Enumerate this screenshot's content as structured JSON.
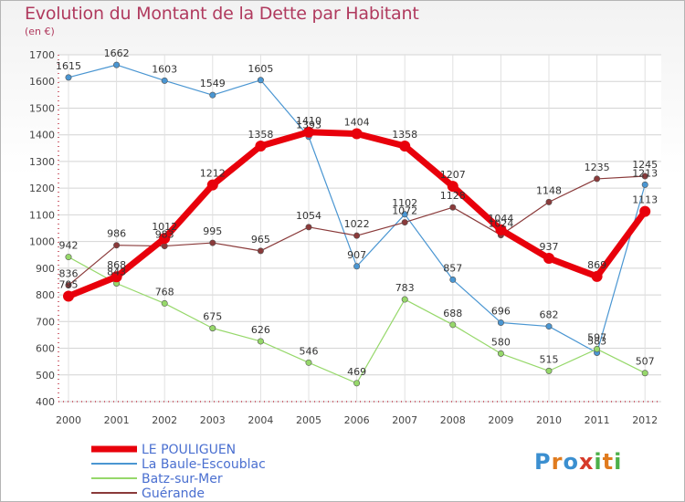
{
  "header": {
    "title": "Evolution du Montant de la Dette par Habitant",
    "subtitle": "(en €)"
  },
  "logo": {
    "letters": [
      "P",
      "r",
      "o",
      "x",
      "i",
      "t",
      "i"
    ],
    "colors": [
      "#3b8fd0",
      "#e07b1e",
      "#3b8fd0",
      "#d63a2a",
      "#4db04a",
      "#e07b1e",
      "#4db04a"
    ]
  },
  "chart_data": {
    "type": "line",
    "title": "Evolution du Montant de la Dette par Habitant",
    "subtitle": "(en €)",
    "xlabel": "",
    "ylabel": "",
    "x": [
      "2000",
      "2001",
      "2002",
      "2003",
      "2004",
      "2005",
      "2006",
      "2007",
      "2008",
      "2009",
      "2010",
      "2011",
      "2012"
    ],
    "ylim": [
      400,
      1700
    ],
    "yticks": [
      400,
      500,
      600,
      700,
      800,
      900,
      1000,
      1100,
      1200,
      1300,
      1400,
      1500,
      1600,
      1700
    ],
    "grid": true,
    "legend_position": "bottom-left",
    "series": [
      {
        "name": "LE POULIGUEN",
        "color": "#e8000b",
        "values": [
          795,
          868,
          1012,
          1212,
          1358,
          1410,
          1404,
          1358,
          1207,
          1044,
          937,
          869,
          1113
        ],
        "labels": [
          "795",
          "868",
          "1012",
          "1212",
          "1358",
          "1410",
          "1404",
          "1358",
          "1207",
          "1044",
          "937",
          "869",
          "1113"
        ]
      },
      {
        "name": "La Baule-Escoublac",
        "color": "#4a96d2",
        "values": [
          1615,
          1662,
          1603,
          1549,
          1605,
          1393,
          907,
          1102,
          857,
          696,
          682,
          583,
          1213
        ],
        "labels": [
          "1615",
          "1662",
          "1603",
          "1549",
          "1605",
          "1393",
          "907",
          "1102",
          "857",
          "696",
          "682",
          "583",
          "1213"
        ]
      },
      {
        "name": "Batz-sur-Mer",
        "color": "#96d86a",
        "values": [
          942,
          843,
          768,
          675,
          626,
          546,
          469,
          783,
          688,
          580,
          515,
          597,
          507
        ],
        "labels": [
          "942",
          "843",
          "768",
          "675",
          "626",
          "546",
          "469",
          "783",
          "688",
          "580",
          "515",
          "597",
          "507"
        ]
      },
      {
        "name": "Guérande",
        "color": "#8a3a3a",
        "values": [
          836,
          986,
          983,
          995,
          965,
          1054,
          1022,
          1072,
          1128,
          1024,
          1148,
          1235,
          1245
        ],
        "labels": [
          "836",
          "986",
          "983",
          "995",
          "965",
          "1054",
          "1022",
          "1072",
          "1128",
          "1024",
          "1148",
          "1235",
          "1245"
        ]
      }
    ]
  }
}
